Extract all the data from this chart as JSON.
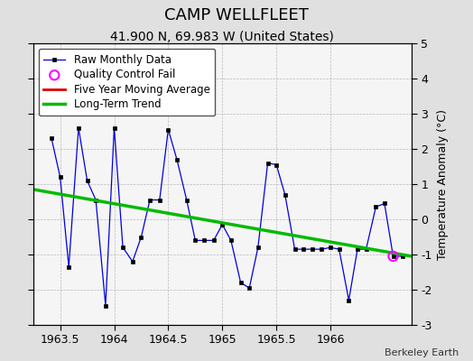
{
  "title": "CAMP WELLFLEET",
  "subtitle": "41.900 N, 69.983 W (United States)",
  "watermark": "Berkeley Earth",
  "ylabel": "Temperature Anomaly (°C)",
  "xlim": [
    1963.25,
    1966.75
  ],
  "ylim": [
    -3,
    5
  ],
  "yticks": [
    -3,
    -2,
    -1,
    0,
    1,
    2,
    3,
    4,
    5
  ],
  "xticks": [
    1963.5,
    1964.0,
    1964.5,
    1965.0,
    1965.5,
    1966.0
  ],
  "xticklabels": [
    "1963.5",
    "1964",
    "1964.5",
    "1965",
    "1965.5",
    "1966"
  ],
  "bg_color": "#e0e0e0",
  "plot_bg_color": "#f5f5f5",
  "raw_x": [
    1963.42,
    1963.5,
    1963.58,
    1963.67,
    1963.75,
    1963.83,
    1963.92,
    1964.0,
    1964.08,
    1964.17,
    1964.25,
    1964.33,
    1964.42,
    1964.5,
    1964.58,
    1964.67,
    1964.75,
    1964.83,
    1964.92,
    1965.0,
    1965.08,
    1965.17,
    1965.25,
    1965.33,
    1965.42,
    1965.5,
    1965.58,
    1965.67,
    1965.75,
    1965.83,
    1965.92,
    1966.0,
    1966.08,
    1966.17,
    1966.25,
    1966.33,
    1966.42,
    1966.5,
    1966.58,
    1966.67
  ],
  "raw_y": [
    2.3,
    1.2,
    -1.35,
    2.6,
    1.1,
    0.55,
    -2.45,
    2.6,
    -0.8,
    -1.2,
    -0.5,
    0.55,
    0.55,
    2.55,
    1.7,
    0.55,
    -0.6,
    -0.6,
    -0.6,
    -0.15,
    -0.6,
    -1.8,
    -1.95,
    -0.8,
    1.6,
    1.55,
    0.7,
    -0.85,
    -0.85,
    -0.85,
    -0.85,
    -0.8,
    -0.85,
    -2.3,
    -0.85,
    -0.85,
    0.35,
    0.45,
    -1.05,
    -1.05
  ],
  "qc_fail_x": [
    1966.58
  ],
  "qc_fail_y": [
    -1.05
  ],
  "trend_x": [
    1963.25,
    1966.75
  ],
  "trend_y": [
    0.85,
    -1.05
  ],
  "line_color": "#0000dd",
  "marker_color": "#000000",
  "qc_color": "#ff00ff",
  "trend_color": "#00bb00",
  "moving_avg_color": "#dd0000",
  "title_fontsize": 13,
  "subtitle_fontsize": 10,
  "axis_label_fontsize": 9,
  "tick_fontsize": 9,
  "watermark_fontsize": 8,
  "legend_fontsize": 8.5
}
